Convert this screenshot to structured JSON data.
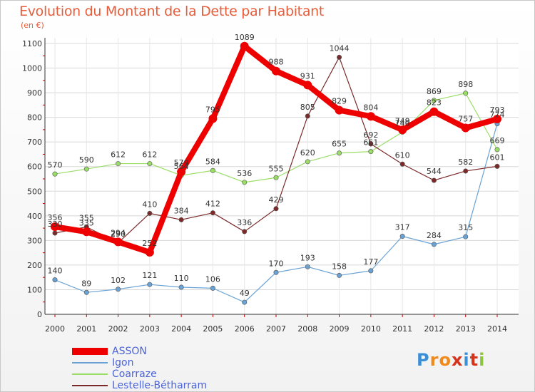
{
  "title": "Evolution du Montant de la Dette par Habitant",
  "unit_label": "(en €)",
  "brand": "Proxiti",
  "chart_data": {
    "type": "line",
    "title": "Evolution du Montant de la Dette par Habitant",
    "subtitle": "(en €)",
    "xlabel": "",
    "ylabel": "",
    "x": [
      "2000",
      "2001",
      "2002",
      "2003",
      "2004",
      "2005",
      "2006",
      "2007",
      "2008",
      "2009",
      "2010",
      "2011",
      "2012",
      "2013",
      "2014"
    ],
    "y_ticks": [
      0,
      100,
      200,
      300,
      400,
      500,
      600,
      700,
      800,
      900,
      1000,
      1100
    ],
    "ylim": [
      0,
      1100
    ],
    "grid": true,
    "legend_position": "bottom-left",
    "series": [
      {
        "name": "ASSON",
        "color": "#ee0000",
        "width": 8,
        "values": [
          356,
          335,
          294,
          252,
          579,
          795,
          1089,
          988,
          931,
          829,
          804,
          749,
          823,
          757,
          793
        ]
      },
      {
        "name": "Igon",
        "color": "#6aa2d4",
        "width": 1.2,
        "values": [
          140,
          89,
          102,
          121,
          110,
          106,
          49,
          170,
          193,
          158,
          177,
          317,
          284,
          315,
          774
        ]
      },
      {
        "name": "Coarraze",
        "color": "#99dd66",
        "width": 1.2,
        "values": [
          570,
          590,
          612,
          612,
          564,
          584,
          536,
          555,
          620,
          655,
          661,
          740,
          869,
          898,
          669
        ]
      },
      {
        "name": "Lestelle-Bétharram",
        "color": "#7a2a2a",
        "width": 1.2,
        "values": [
          330,
          355,
          290,
          410,
          384,
          412,
          336,
          429,
          805,
          1044,
          692,
          610,
          544,
          582,
          601
        ]
      }
    ]
  }
}
